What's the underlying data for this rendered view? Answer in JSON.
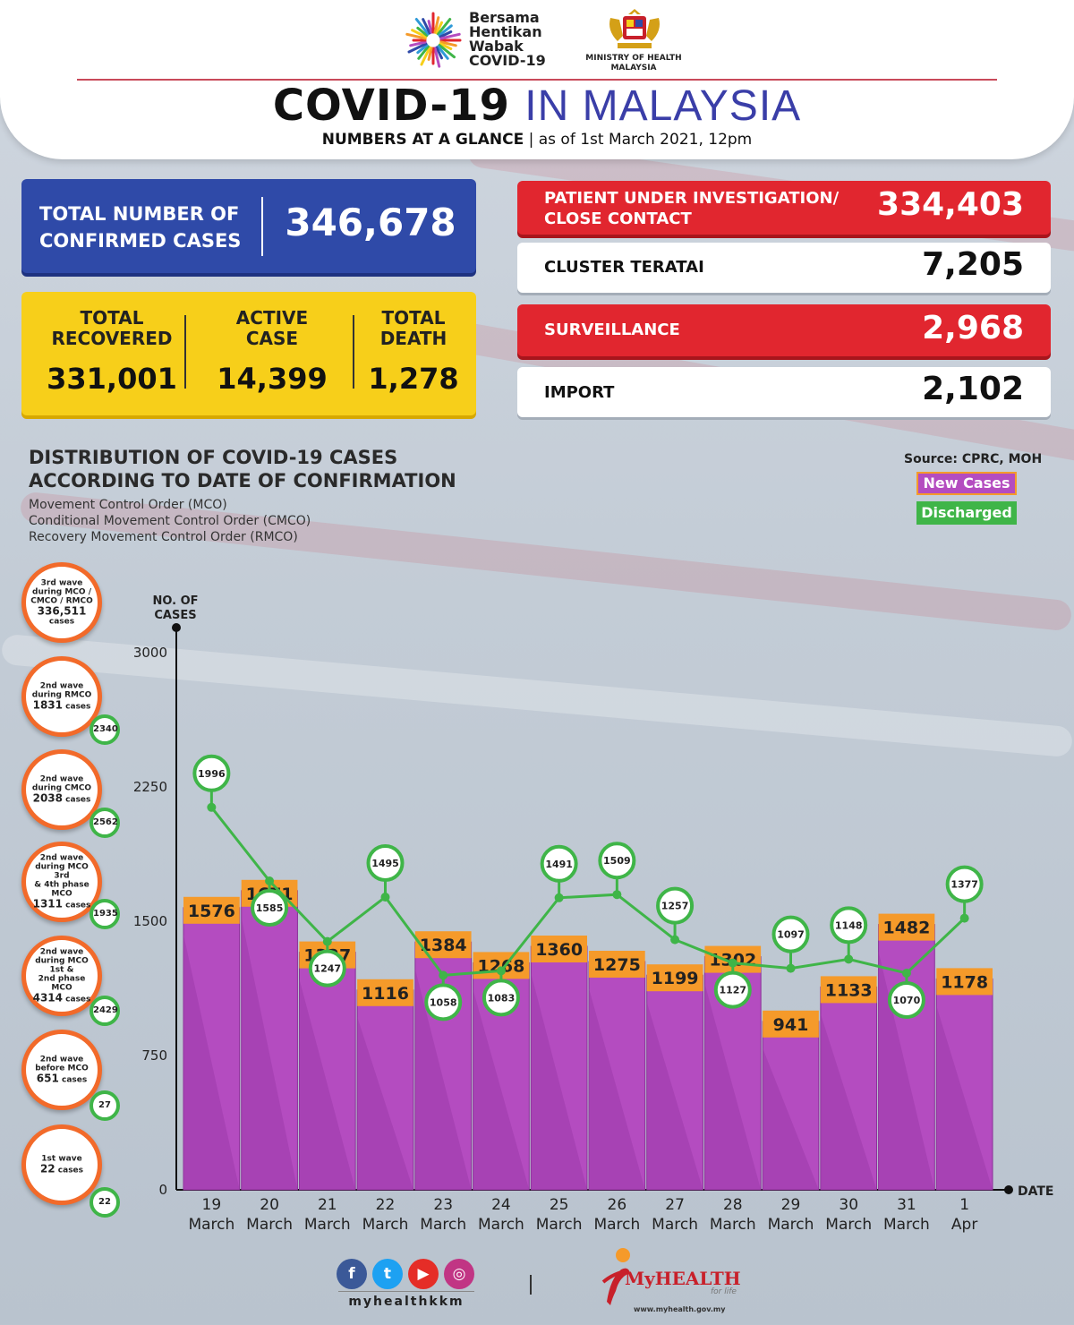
{
  "header": {
    "campaign_lines": [
      "Bersama",
      "Hentikan",
      "Wabak",
      "COVID-19"
    ],
    "ministry_lines": [
      "MINISTRY OF HEALTH",
      "MALAYSIA"
    ],
    "title_bold": "COVID-19",
    "title_light": "IN MALAYSIA",
    "subtitle_bold": "NUMBERS AT A GLANCE",
    "subtitle_sep": "|",
    "subtitle_date": "as of 1st March 2021, 12pm"
  },
  "stats": {
    "confirmed": {
      "label_lines": [
        "TOTAL NUMBER OF",
        "CONFIRMED CASES"
      ],
      "value": "346,678"
    },
    "recovered": {
      "label_lines": [
        "TOTAL",
        "RECOVERED"
      ],
      "value": "331,001"
    },
    "active": {
      "label_lines": [
        "ACTIVE",
        "CASE"
      ],
      "value": "14,399"
    },
    "death": {
      "label_lines": [
        "TOTAL",
        "DEATH"
      ],
      "value": "1,278"
    },
    "pui": {
      "label_lines": [
        "PATIENT UNDER INVESTIGATION/",
        "CLOSE CONTACT"
      ],
      "value": "334,403"
    },
    "cluster": {
      "label": "CLUSTER TERATAI",
      "value": "7,205"
    },
    "surveillance": {
      "label": "SURVEILLANCE",
      "value": "2,968"
    },
    "import": {
      "label": "IMPORT",
      "value": "2,102"
    }
  },
  "section": {
    "title_lines": [
      "DISTRIBUTION OF COVID-19 CASES",
      "ACCORDING TO DATE OF CONFIRMATION"
    ],
    "notes": [
      "Movement Control Order (MCO)",
      "Conditional Movement Control Order (CMCO)",
      "Recovery Movement Control Order (RMCO)"
    ],
    "source": "Source: CPRC, MOH"
  },
  "waves": [
    {
      "lines": [
        "3rd wave",
        "during MCO /",
        "CMCO / RMCO"
      ],
      "number": "336,511",
      "unit": "cases",
      "badge": ""
    },
    {
      "lines": [
        "2nd wave",
        "during RMCO"
      ],
      "number": "1831",
      "unit": "cases",
      "badge": "2340"
    },
    {
      "lines": [
        "2nd wave",
        "during CMCO"
      ],
      "number": "2038",
      "unit": "cases",
      "badge": "2562"
    },
    {
      "lines": [
        "2nd wave",
        "during MCO 3rd",
        "& 4th phase MCO"
      ],
      "number": "1311",
      "unit": "cases",
      "badge": "1935"
    },
    {
      "lines": [
        "2nd wave",
        "during MCO 1st &",
        "2nd phase MCO"
      ],
      "number": "4314",
      "unit": "cases",
      "badge": "2429"
    },
    {
      "lines": [
        "2nd wave",
        "before MCO"
      ],
      "number": "651",
      "unit": "cases",
      "badge": "27"
    },
    {
      "lines": [
        "1st wave"
      ],
      "number": "22",
      "unit": "cases",
      "badge": "22"
    }
  ],
  "chart_data": {
    "type": "bar",
    "categories": [
      "19 March",
      "20 March",
      "21 March",
      "22 March",
      "23 March",
      "24 March",
      "25 March",
      "26 March",
      "27 March",
      "28 March",
      "29 March",
      "30 March",
      "31 March",
      "1 Apr"
    ],
    "tick_lines": [
      [
        "19",
        "March"
      ],
      [
        "20",
        "March"
      ],
      [
        "21",
        "March"
      ],
      [
        "22",
        "March"
      ],
      [
        "23",
        "March"
      ],
      [
        "24",
        "March"
      ],
      [
        "25",
        "March"
      ],
      [
        "26",
        "March"
      ],
      [
        "27",
        "March"
      ],
      [
        "28",
        "March"
      ],
      [
        "29",
        "March"
      ],
      [
        "30",
        "March"
      ],
      [
        "31",
        "March"
      ],
      [
        "1",
        "Apr"
      ]
    ],
    "series": [
      {
        "name": "New Cases",
        "kind": "bar",
        "color": "#b44cc0",
        "label_color": "#f59a2a",
        "values": [
          1576,
          1671,
          1327,
          1116,
          1384,
          1268,
          1360,
          1275,
          1199,
          1302,
          941,
          1133,
          1482,
          1178
        ]
      },
      {
        "name": "Discharged",
        "kind": "line",
        "color": "#3fb548",
        "values": [
          1996,
          1585,
          1247,
          1495,
          1058,
          1083,
          1491,
          1509,
          1257,
          1127,
          1097,
          1148,
          1070,
          1377
        ]
      }
    ],
    "ylabel_lines": [
      "NO. OF",
      "CASES"
    ],
    "xlabel": "DATE",
    "yticks": [
      0,
      750,
      1500,
      2250,
      3000
    ],
    "ylim": [
      0,
      3000
    ],
    "legend_placement": "top-right",
    "grid": false
  },
  "footer": {
    "social_icons": [
      "facebook-icon",
      "twitter-icon",
      "youtube-icon",
      "instagram-icon"
    ],
    "handle": "myhealthkkm",
    "brand_main": "MyHEALTH",
    "brand_tag": "for life",
    "brand_url": "www.myhealth.gov.my"
  },
  "colors": {
    "blue": "#2f4aa8",
    "yellow": "#f7cf1a",
    "red": "#e1262f",
    "purple": "#b44cc0",
    "orange": "#f59a2a",
    "green": "#3fb548",
    "title_blue": "#3a3ea8"
  }
}
